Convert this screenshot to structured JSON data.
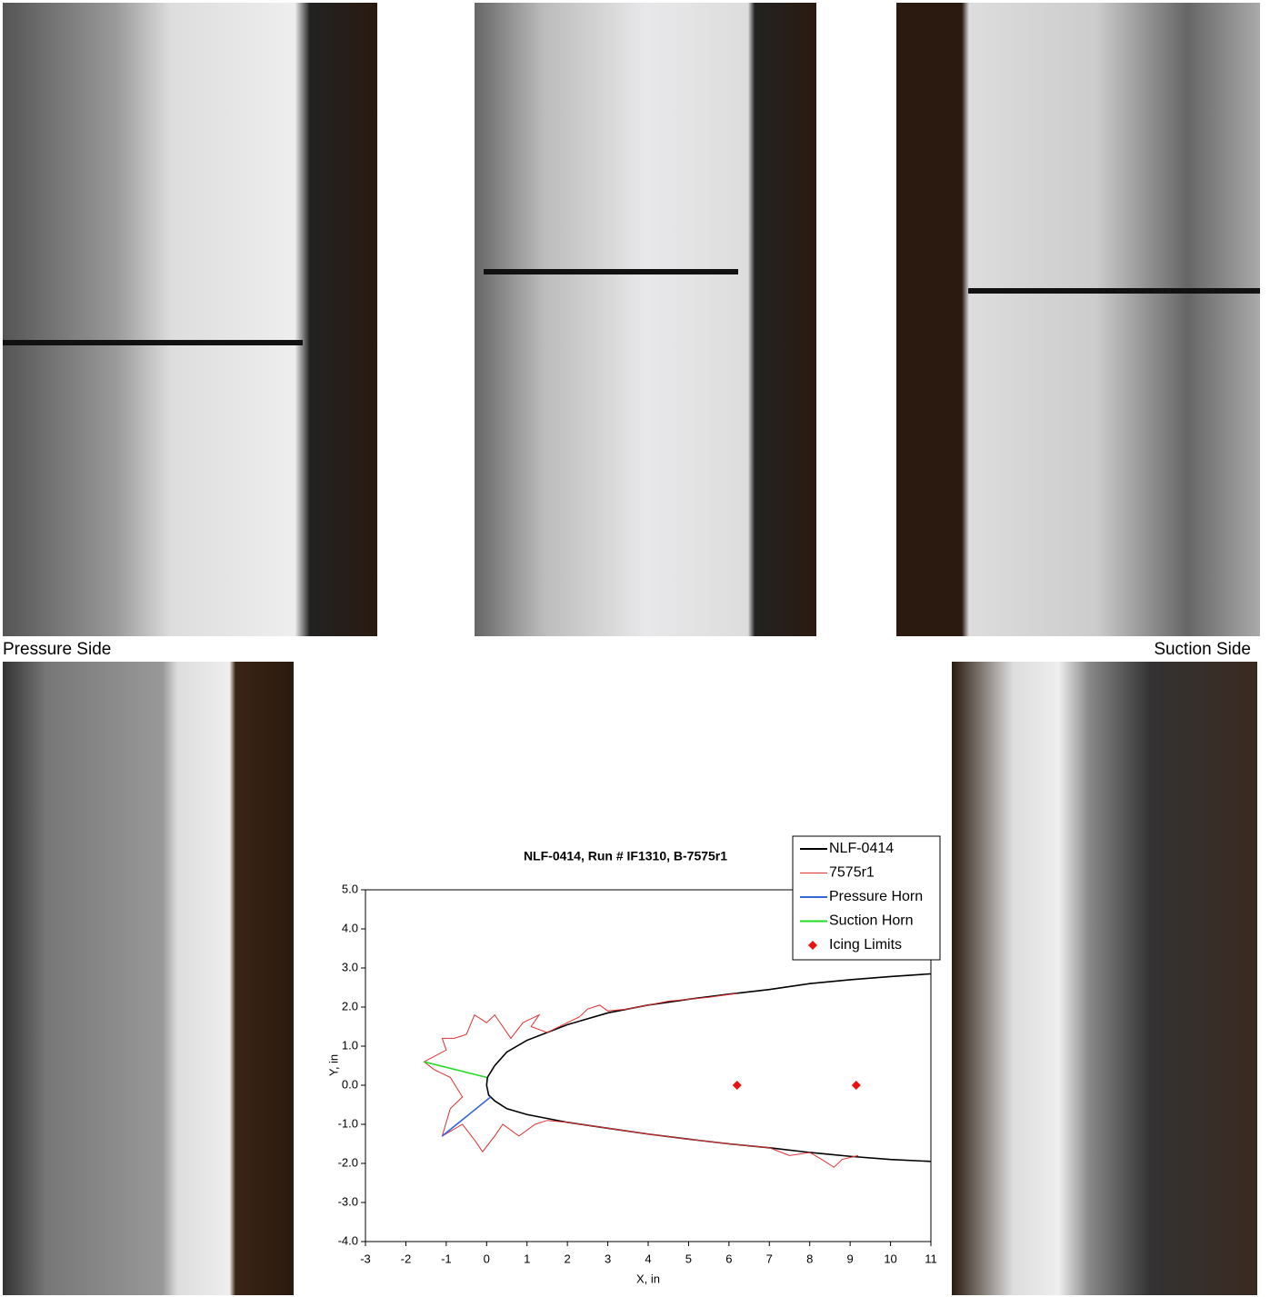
{
  "captions": [
    "Pressure Side",
    "Suction Side"
  ],
  "chart_data": {
    "type": "line",
    "title": "NLF-0414, Run # IF1310, B-7575r1",
    "xlabel": "X, in",
    "ylabel": "Y, in",
    "xlim": [
      -3,
      11
    ],
    "xticks": [
      -3,
      -2,
      -1,
      0,
      1,
      2,
      3,
      4,
      5,
      6,
      7,
      8,
      9,
      10,
      11
    ],
    "ylim": [
      -4,
      5
    ],
    "yticks": [
      {
        "value": -4,
        "label": "-4.0"
      },
      {
        "value": -3,
        "label": "-3.0"
      },
      {
        "value": -2,
        "label": "-2.0"
      },
      {
        "value": -1,
        "label": "-1.0"
      },
      {
        "value": 0,
        "label": "0.0"
      },
      {
        "value": 1,
        "label": "1.0"
      },
      {
        "value": 2,
        "label": "2.0"
      },
      {
        "value": 3,
        "label": "3.0"
      },
      {
        "value": 4,
        "label": "4.0"
      },
      {
        "value": 5,
        "label": "5.0"
      }
    ],
    "legend": "upper right",
    "series": [
      {
        "name": "NLF-0414",
        "color": "#000000",
        "x": [
          11,
          10,
          9,
          8,
          7,
          6,
          5,
          4,
          3,
          2,
          1,
          0.5,
          0.2,
          0.02,
          0,
          0.05,
          0.2,
          0.5,
          1,
          2,
          3,
          4,
          5,
          6,
          7,
          8,
          9,
          10,
          11
        ],
        "values": [
          2.85,
          2.78,
          2.7,
          2.6,
          2.45,
          2.33,
          2.2,
          2.05,
          1.85,
          1.55,
          1.15,
          0.85,
          0.5,
          0.2,
          0,
          -0.25,
          -0.4,
          -0.6,
          -0.75,
          -0.95,
          -1.1,
          -1.25,
          -1.38,
          -1.5,
          -1.6,
          -1.72,
          -1.82,
          -1.9,
          -1.95
        ]
      },
      {
        "name": "7575r1",
        "color": "#e03030",
        "x": [
          6.2,
          5.5,
          4.5,
          4,
          3.5,
          3,
          2.8,
          2.5,
          2.3,
          2,
          1.5,
          1.1,
          1.3,
          0.9,
          0.6,
          0.2,
          0,
          -0.3,
          -0.5,
          -0.8,
          -1.1,
          -1,
          -1.55,
          -1.3,
          -0.9,
          -0.6,
          -0.9,
          -1.1,
          -0.6,
          -0.3,
          -0.1,
          0.2,
          0.4,
          0.8,
          1.2,
          1.5,
          2,
          3,
          4,
          5,
          6,
          7,
          7.5,
          8,
          8.3,
          8.6,
          8.8,
          9.2
        ],
        "values": [
          2.35,
          2.25,
          2.15,
          2.05,
          1.95,
          1.9,
          2.05,
          1.95,
          1.75,
          1.6,
          1.35,
          1.5,
          1.8,
          1.6,
          1.2,
          1.8,
          1.6,
          1.8,
          1.3,
          1.2,
          1.2,
          0.9,
          0.6,
          0.4,
          0.2,
          -0.3,
          -0.6,
          -1.3,
          -1,
          -1.4,
          -1.7,
          -1.3,
          -1,
          -1.3,
          -1,
          -0.9,
          -0.95,
          -1.1,
          -1.25,
          -1.38,
          -1.5,
          -1.6,
          -1.8,
          -1.72,
          -1.9,
          -2.1,
          -1.9,
          -1.8
        ]
      },
      {
        "name": "Pressure Horn",
        "color": "#3366dd",
        "x": [
          0.1,
          -1.1
        ],
        "values": [
          -0.3,
          -1.3
        ]
      },
      {
        "name": "Suction Horn",
        "color": "#22dd22",
        "x": [
          0,
          -1.55
        ],
        "values": [
          0.2,
          0.6
        ]
      },
      {
        "name": "Icing Limits",
        "color": "#ee1111",
        "marker": "diamond",
        "x": [
          6.2,
          9.15
        ],
        "values": [
          0,
          0
        ]
      }
    ]
  }
}
